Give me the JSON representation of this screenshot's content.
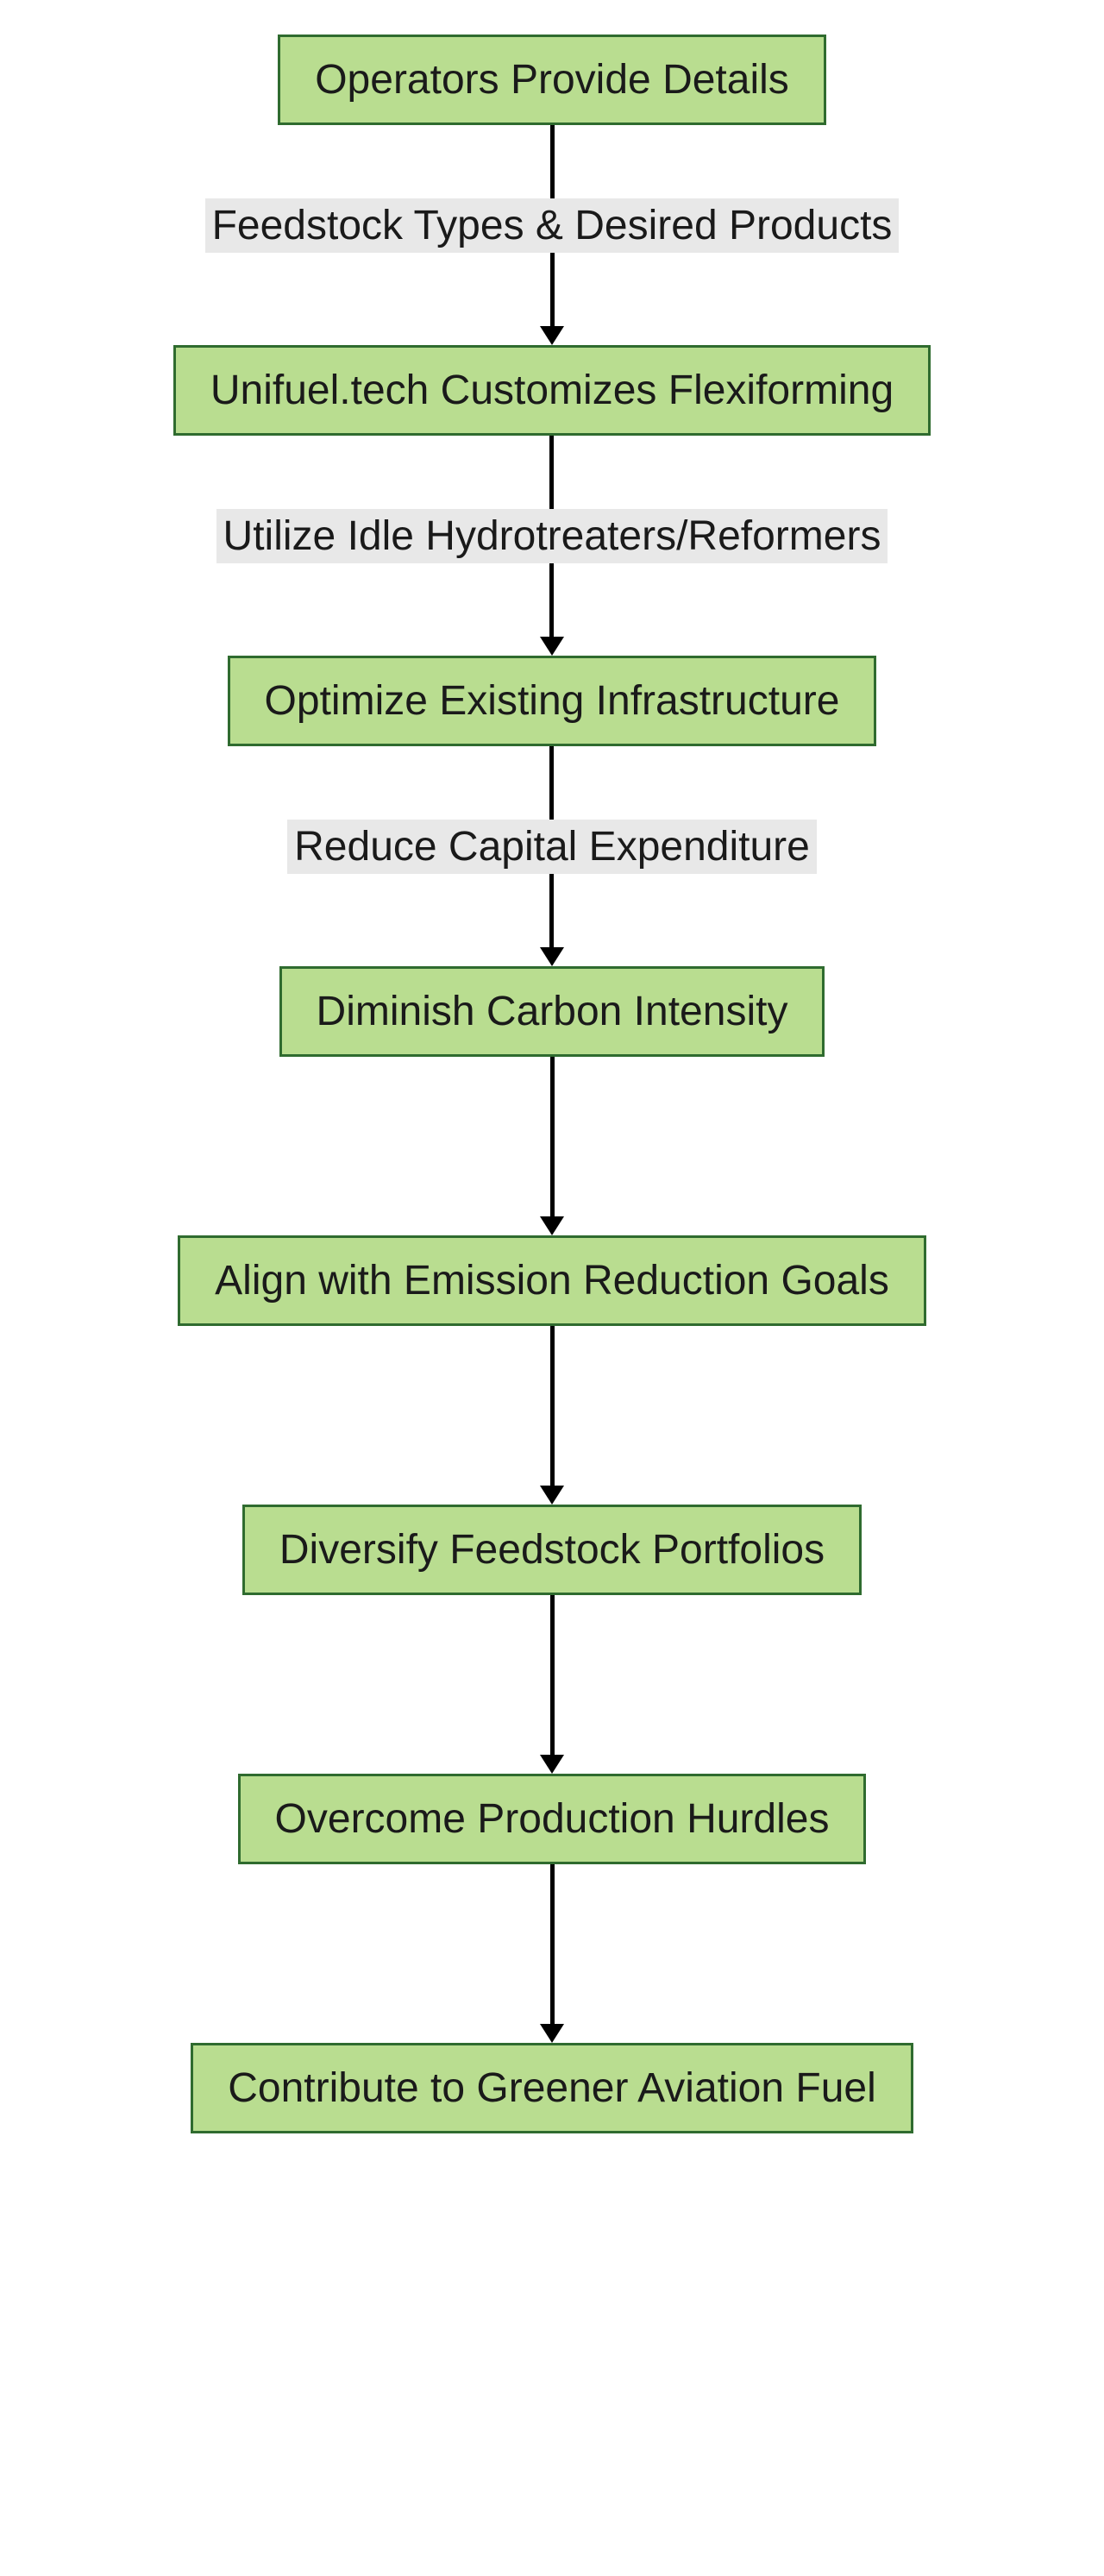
{
  "flowchart": {
    "type": "flowchart",
    "background_color": "#ffffff",
    "node_style": {
      "fill_color": "#b9dd90",
      "border_color": "#2f6b2f",
      "border_width": 3,
      "text_color": "#1a1a1a",
      "font_size": 48,
      "font_weight": "400",
      "padding_v": 22,
      "padding_h": 40
    },
    "edge_style": {
      "line_color": "#000000",
      "line_width": 5,
      "arrow_size": 22,
      "label_bg": "#e8e8e8",
      "label_text_color": "#1a1a1a",
      "label_font_size": 48,
      "short_segment_height": 85,
      "long_segment_height": 185
    },
    "nodes": [
      {
        "id": "n1",
        "label": "Operators Provide Details"
      },
      {
        "id": "n2",
        "label": "Unifuel.tech Customizes Flexiforming"
      },
      {
        "id": "n3",
        "label": "Optimize Existing Infrastructure"
      },
      {
        "id": "n4",
        "label": "Diminish Carbon Intensity"
      },
      {
        "id": "n5",
        "label": "Align with Emission Reduction Goals"
      },
      {
        "id": "n6",
        "label": "Diversify Feedstock Portfolios"
      },
      {
        "id": "n7",
        "label": "Overcome Production Hurdles"
      },
      {
        "id": "n8",
        "label": "Contribute to Greener Aviation Fuel"
      }
    ],
    "edges": [
      {
        "from": "n1",
        "to": "n2",
        "label": "Feedstock Types & Desired Products"
      },
      {
        "from": "n2",
        "to": "n3",
        "label": "Utilize Idle Hydrotreaters/Reformers"
      },
      {
        "from": "n3",
        "to": "n4",
        "label": "Reduce Capital Expenditure"
      },
      {
        "from": "n4",
        "to": "n5",
        "label": ""
      },
      {
        "from": "n5",
        "to": "n6",
        "label": ""
      },
      {
        "from": "n6",
        "to": "n7",
        "label": ""
      },
      {
        "from": "n7",
        "to": "n8",
        "label": ""
      }
    ]
  }
}
